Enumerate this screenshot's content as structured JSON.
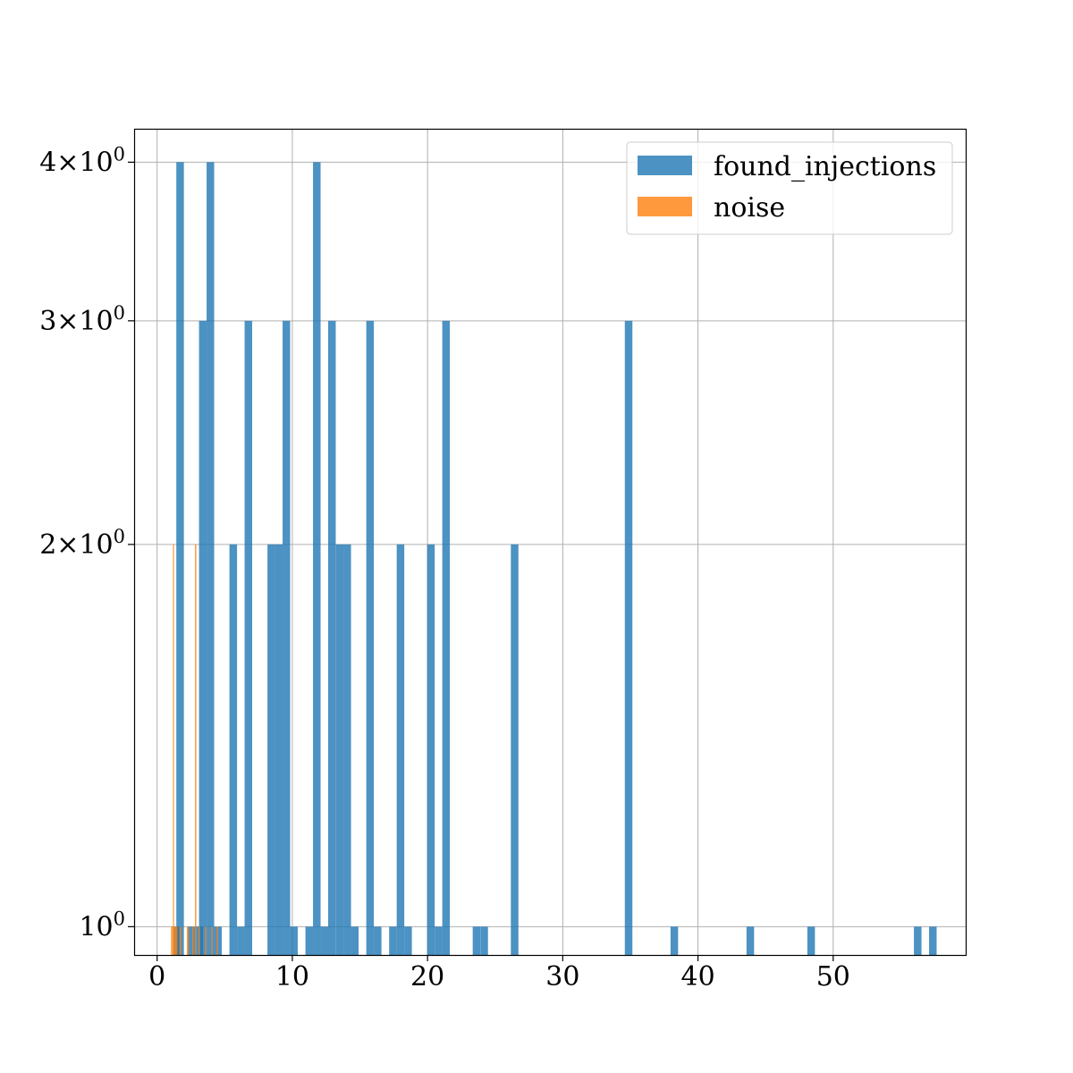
{
  "chart_data": {
    "type": "bar",
    "xlim": [
      -1.7,
      59.8
    ],
    "ylim": [
      0.95,
      4.25
    ],
    "yscale": "log",
    "grid": true,
    "legend_placement": "top-right",
    "x_ticks": [
      {
        "value": 0,
        "label": "0"
      },
      {
        "value": 10,
        "label": "10"
      },
      {
        "value": 20,
        "label": "20"
      },
      {
        "value": 30,
        "label": "30"
      },
      {
        "value": 40,
        "label": "40"
      },
      {
        "value": 50,
        "label": "50"
      }
    ],
    "y_ticks": [
      {
        "value": 1,
        "label_base": "10",
        "label_exp": "0"
      },
      {
        "value": 2,
        "label_prefix": "2×",
        "label_base": "10",
        "label_exp": "0"
      },
      {
        "value": 3,
        "label_prefix": "3×",
        "label_base": "10",
        "label_exp": "0"
      },
      {
        "value": 4,
        "label_prefix": "4×",
        "label_base": "10",
        "label_exp": "0"
      }
    ],
    "series": [
      {
        "name": "found_injections",
        "color": "#1f77b4",
        "opacity": 0.8,
        "bin_width": 0.56,
        "bins": [
          [
            1.2,
            1
          ],
          [
            1.42,
            4
          ],
          [
            2.27,
            1
          ],
          [
            2.83,
            1
          ],
          [
            3.1,
            3
          ],
          [
            3.66,
            4
          ],
          [
            4.22,
            1
          ],
          [
            5.35,
            2
          ],
          [
            5.91,
            1
          ],
          [
            6.47,
            3
          ],
          [
            8.16,
            2
          ],
          [
            8.72,
            2
          ],
          [
            9.28,
            3
          ],
          [
            9.84,
            1
          ],
          [
            10.97,
            1
          ],
          [
            11.53,
            4
          ],
          [
            12.09,
            1
          ],
          [
            12.65,
            3
          ],
          [
            13.22,
            2
          ],
          [
            13.78,
            2
          ],
          [
            14.34,
            1
          ],
          [
            15.47,
            3
          ],
          [
            16.03,
            1
          ],
          [
            17.16,
            1
          ],
          [
            17.72,
            2
          ],
          [
            18.28,
            1
          ],
          [
            19.97,
            2
          ],
          [
            20.53,
            1
          ],
          [
            21.09,
            3
          ],
          [
            23.34,
            1
          ],
          [
            23.91,
            1
          ],
          [
            26.16,
            2
          ],
          [
            34.59,
            3
          ],
          [
            37.97,
            1
          ],
          [
            43.59,
            1
          ],
          [
            48.09,
            1
          ],
          [
            55.97,
            1
          ],
          [
            57.09,
            1
          ]
        ]
      },
      {
        "name": "noise",
        "color": "#ff7f0e",
        "opacity": 0.8,
        "bins": [
          [
            1.03,
            1.17,
            1
          ],
          [
            1.17,
            1.25,
            2
          ],
          [
            1.25,
            1.5,
            1
          ],
          [
            1.65,
            1.78,
            1
          ],
          [
            2.2,
            2.35,
            1
          ],
          [
            2.6,
            2.7,
            1
          ],
          [
            2.8,
            2.9,
            2
          ],
          [
            3.08,
            3.18,
            1
          ],
          [
            3.55,
            3.65,
            1
          ],
          [
            4.0,
            4.1,
            1
          ],
          [
            4.4,
            4.5,
            1
          ]
        ]
      }
    ]
  }
}
